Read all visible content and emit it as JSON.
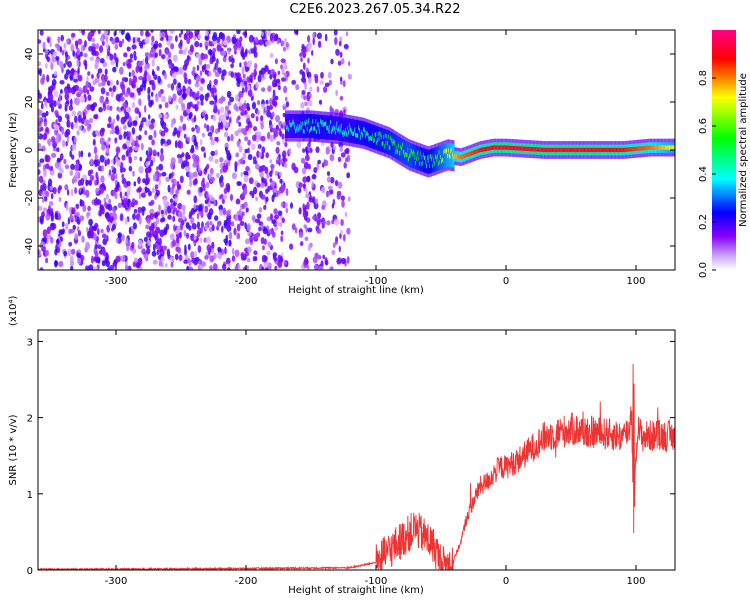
{
  "title": "C2E6.2023.267.05.34.R22",
  "chart_data": [
    {
      "type": "heatmap",
      "xlabel": "Height of straight line (km)",
      "ylabel": "Frequency (Hz)",
      "xlim": [
        -360,
        130
      ],
      "ylim": [
        -50,
        50
      ],
      "xticks": [
        -300,
        -200,
        -100,
        0,
        100
      ],
      "yticks": [
        -40,
        -20,
        0,
        20,
        40
      ],
      "colorbar": {
        "label": "Normalized spectral amplitude",
        "range": [
          0,
          1
        ],
        "ticks": [
          "0.0",
          "0.2",
          "0.4",
          "0.6",
          "0.8"
        ],
        "colormap": [
          "#ffffff",
          "#8800ff",
          "#0000ff",
          "#00ffff",
          "#00ff00",
          "#ffff00",
          "#ff0000",
          "#ff0088"
        ]
      },
      "noise_region": {
        "x_range": [
          -360,
          -120
        ],
        "y_range": [
          -50,
          50
        ],
        "level": 0.1
      },
      "ridge": {
        "x": [
          -170,
          -150,
          -130,
          -110,
          -90,
          -75,
          -60,
          -45,
          -35,
          -20,
          -10,
          0,
          30,
          60,
          90,
          110,
          130
        ],
        "y": [
          10,
          10,
          9,
          7,
          3,
          -2,
          -5,
          -2,
          -3,
          0,
          1,
          1,
          0,
          0,
          0,
          1,
          1
        ],
        "amplitude": [
          0.4,
          0.5,
          0.45,
          0.5,
          0.55,
          0.6,
          0.5,
          0.7,
          0.8,
          0.85,
          0.9,
          0.9,
          0.9,
          0.9,
          0.85,
          0.8,
          0.7
        ]
      }
    },
    {
      "type": "line",
      "xlabel": "Height of straight line (km)",
      "ylabel": "SNR (10 * v/v)",
      "yscale_label": "(x10⁴)",
      "xlim": [
        -360,
        130
      ],
      "ylim": [
        0,
        3.15
      ],
      "xticks": [
        -300,
        -200,
        -100,
        0,
        100
      ],
      "yticks": [
        0,
        1,
        2,
        3
      ],
      "series": [
        {
          "color": "#ee3333",
          "x": [
            -360,
            -300,
            -200,
            -120,
            -100,
            -90,
            -80,
            -70,
            -60,
            -55,
            -50,
            -45,
            -40,
            -35,
            -30,
            -25,
            -20,
            -15,
            -10,
            -5,
            0,
            10,
            20,
            30,
            40,
            50,
            60,
            70,
            80,
            90,
            95,
            97,
            99,
            101,
            105,
            110,
            120,
            130
          ],
          "values": [
            0.01,
            0.01,
            0.02,
            0.03,
            0.1,
            0.25,
            0.4,
            0.55,
            0.4,
            0.3,
            0.1,
            0.05,
            0.15,
            0.35,
            0.7,
            0.9,
            1.1,
            1.15,
            1.25,
            1.35,
            1.35,
            1.45,
            1.6,
            1.75,
            1.8,
            1.85,
            1.82,
            1.8,
            1.78,
            1.75,
            1.85,
            2.2,
            1.2,
            1.85,
            1.75,
            1.76,
            1.77,
            1.75
          ]
        }
      ]
    }
  ]
}
